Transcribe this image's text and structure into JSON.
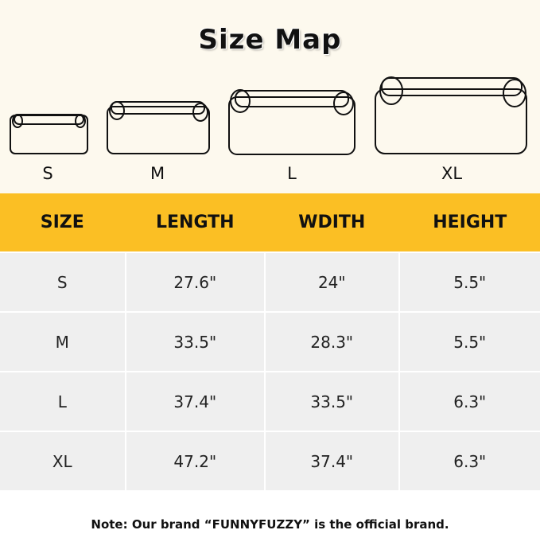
{
  "title": "Size Map",
  "bed_labels": [
    "S",
    "M",
    "L",
    "XL"
  ],
  "table": {
    "headers": [
      "SIZE",
      "LENGTH",
      "WDITH",
      "HEIGHT"
    ],
    "rows": [
      [
        "S",
        "27.6\"",
        "24\"",
        "5.5\""
      ],
      [
        "M",
        "33.5\"",
        "28.3\"",
        "5.5\""
      ],
      [
        "L",
        "37.4\"",
        "33.5\"",
        "6.3\""
      ],
      [
        "XL",
        "47.2\"",
        "37.4\"",
        "6.3\""
      ]
    ]
  },
  "note": "Note: Our brand “FUNNYFUZZY” is the official brand.",
  "colors": {
    "header": "#fbbf24",
    "background": "#fdf9ee",
    "row": "#efefef"
  }
}
